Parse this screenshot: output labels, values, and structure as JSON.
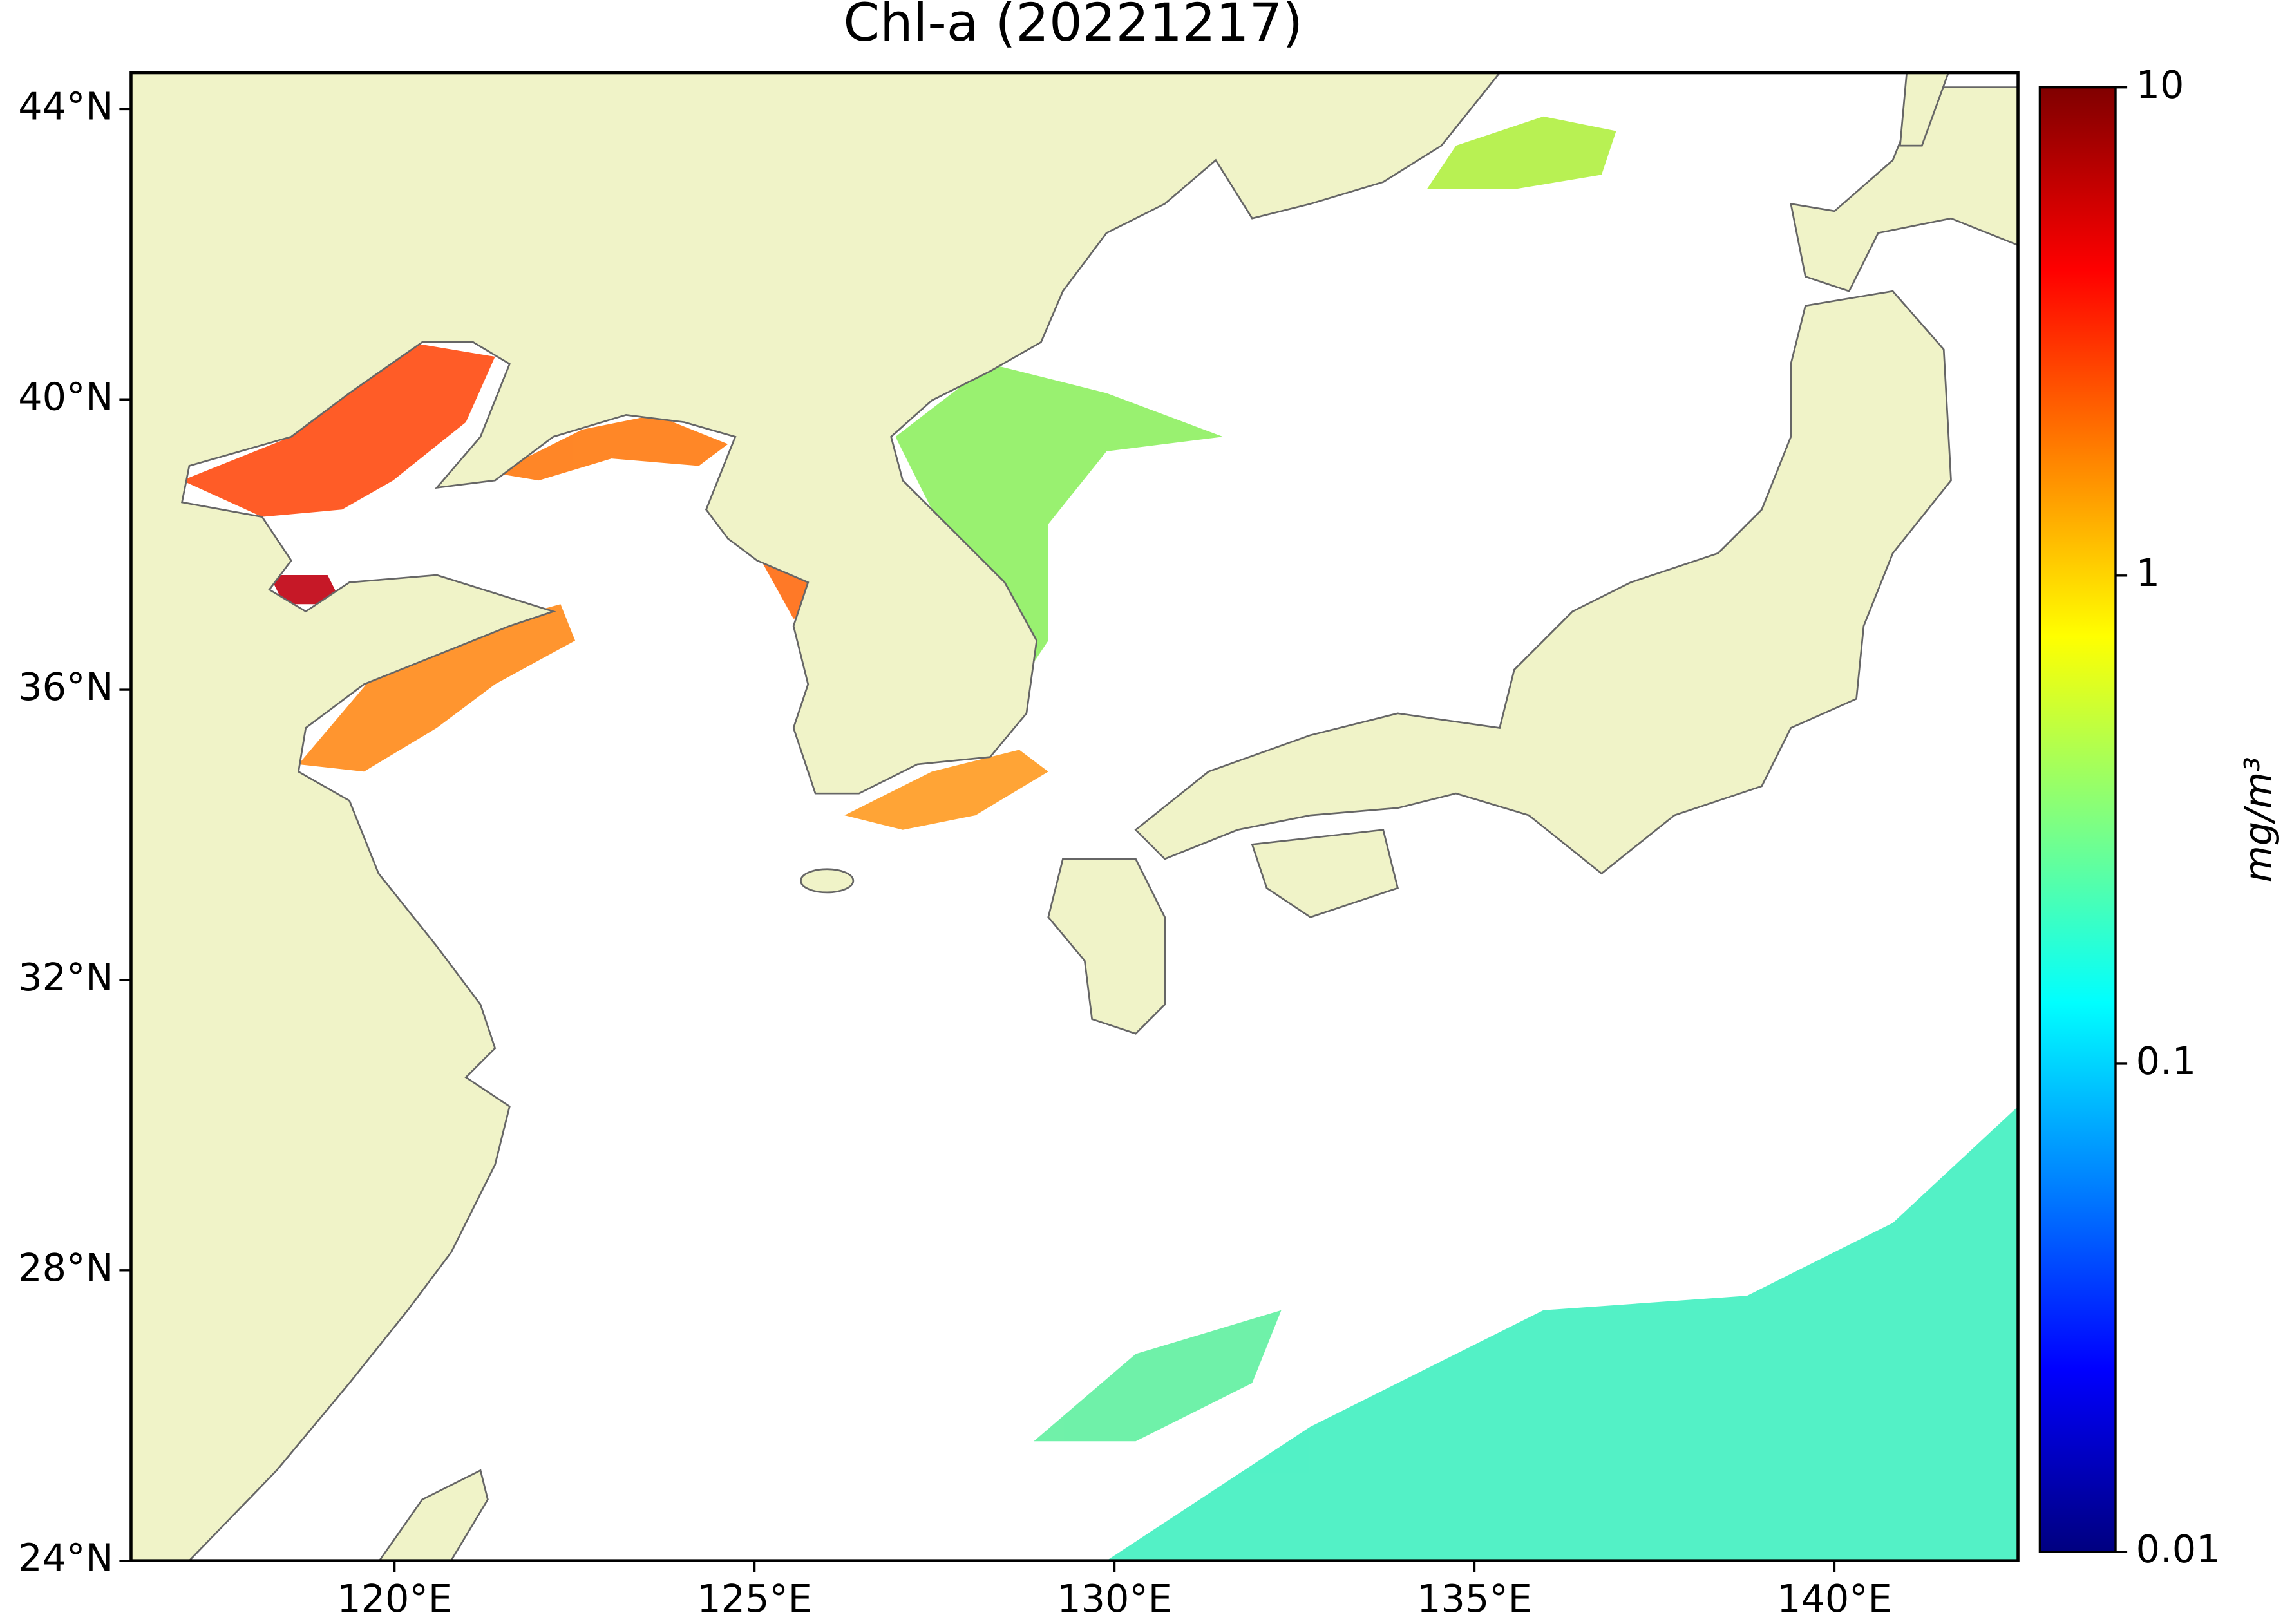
{
  "chart_data": {
    "type": "map",
    "title": "Chl-a (20221217)",
    "xlim": [
      116.34,
      142.55
    ],
    "ylim": [
      24,
      44.5
    ],
    "xticks": [
      {
        "value": 120,
        "label": "120°E"
      },
      {
        "value": 125,
        "label": "125°E"
      },
      {
        "value": 130,
        "label": "130°E"
      },
      {
        "value": 135,
        "label": "135°E"
      },
      {
        "value": 140,
        "label": "140°E"
      }
    ],
    "yticks": [
      {
        "value": 24,
        "label": "24°N"
      },
      {
        "value": 28,
        "label": "28°N"
      },
      {
        "value": 32,
        "label": "32°N"
      },
      {
        "value": 36,
        "label": "36°N"
      },
      {
        "value": 40,
        "label": "40°N"
      },
      {
        "value": 44,
        "label": "44°N"
      }
    ],
    "land_color": "#f0f3c8",
    "colorbar": {
      "label": "mg/m³",
      "colormap": "jet",
      "scale": "log",
      "lim": [
        0.01,
        10
      ],
      "ticks": [
        0.01,
        0.1,
        1,
        10
      ]
    }
  }
}
